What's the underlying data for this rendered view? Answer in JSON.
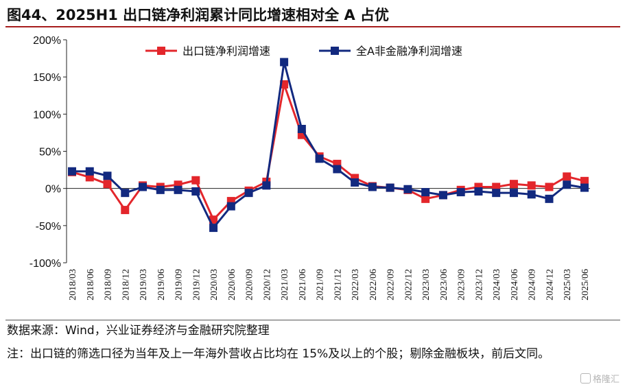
{
  "title": "图44、2025H1 出口链净利润累计同比增速相对全 A 占优",
  "notes": {
    "source": "数据来源：Wind，兴业证券经济与金融研究院整理",
    "remark": "注：出口链的筛选口径为当年及上一年海外营收占比均在 15%及以上的个股；剔除金融板块，前后文同。"
  },
  "watermark": "格隆汇",
  "chart_data": {
    "type": "line",
    "x": [
      "2018/03",
      "2018/06",
      "2018/09",
      "2018/12",
      "2019/03",
      "2019/06",
      "2019/09",
      "2019/12",
      "2020/03",
      "2020/06",
      "2020/09",
      "2020/12",
      "2021/03",
      "2021/06",
      "2021/09",
      "2021/12",
      "2022/03",
      "2022/06",
      "2022/09",
      "2022/12",
      "2023/03",
      "2023/06",
      "2023/09",
      "2023/12",
      "2024/03",
      "2024/06",
      "2024/09",
      "2024/12",
      "2025/03",
      "2025/06"
    ],
    "ylim": [
      -100,
      200
    ],
    "yticks": [
      -100,
      -50,
      0,
      50,
      100,
      150,
      200
    ],
    "ytick_labels": [
      "-100%",
      "-50%",
      "0%",
      "50%",
      "100%",
      "150%",
      "200%"
    ],
    "legend_position": "top",
    "series": [
      {
        "name": "出口链净利润增速",
        "color": "#e3262b",
        "values": [
          22,
          15,
          6,
          -29,
          4,
          2,
          5,
          11,
          -42,
          -17,
          -3,
          9,
          140,
          72,
          43,
          33,
          14,
          3,
          1,
          -2,
          -14,
          -9,
          -2,
          2,
          2,
          6,
          4,
          2,
          16,
          10
        ]
      },
      {
        "name": "全A非金融净利润增速",
        "color": "#12297f",
        "values": [
          23,
          23,
          17,
          -6,
          2,
          -2,
          -2,
          -4,
          -53,
          -24,
          -6,
          4,
          170,
          80,
          40,
          26,
          8,
          2,
          1,
          -1,
          -5,
          -9,
          -5,
          -4,
          -6,
          -6,
          -8,
          -14,
          5,
          1
        ]
      }
    ]
  }
}
